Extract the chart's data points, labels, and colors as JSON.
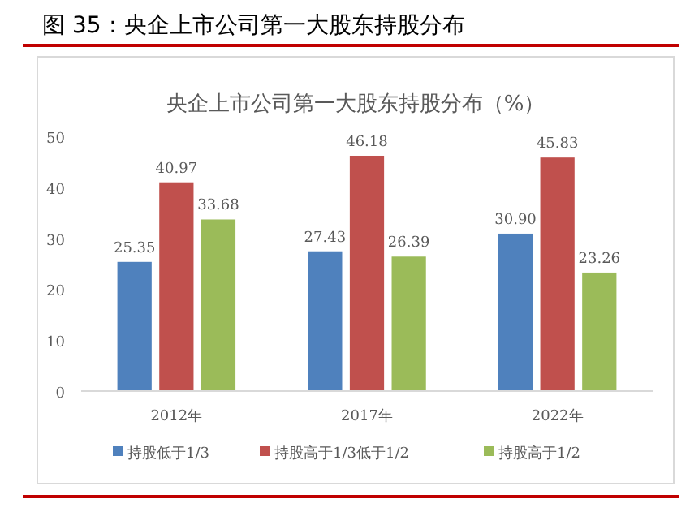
{
  "chart_data": {
    "type": "bar",
    "title": "图 35：央企上市公司第一大股东持股分布",
    "subtitle": "央企上市公司第一大股东持股分布（%）",
    "categories": [
      "2012年",
      "2017年",
      "2022年"
    ],
    "series": [
      {
        "name": "持股低于1/3",
        "color": "#4f81bd",
        "values": [
          25.35,
          27.43,
          30.9
        ],
        "value_labels": [
          "25.35",
          "27.43",
          "30.90"
        ]
      },
      {
        "name": "持股高于1/3低于1/2",
        "color": "#c0504d",
        "values": [
          40.97,
          46.18,
          45.83
        ],
        "value_labels": [
          "40.97",
          "46.18",
          "45.83"
        ]
      },
      {
        "name": "持股高于1/2",
        "color": "#9bbb59",
        "values": [
          33.68,
          26.39,
          23.26
        ],
        "value_labels": [
          "33.68",
          "26.39",
          "23.26"
        ]
      }
    ],
    "ylim": [
      0,
      50
    ],
    "yticks": [
      0,
      10,
      20,
      30,
      40,
      50
    ],
    "legend": "bottom"
  }
}
